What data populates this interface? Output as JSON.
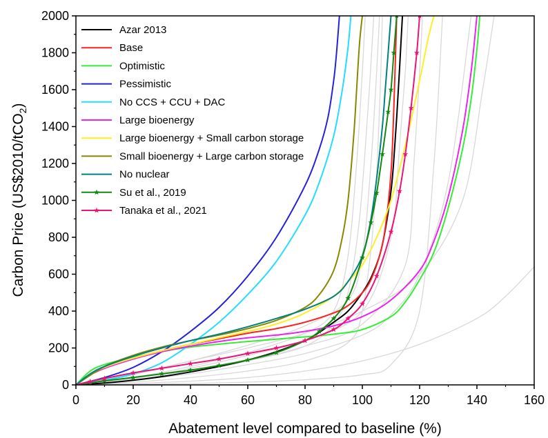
{
  "chart_data": {
    "type": "line",
    "title": "",
    "xlabel": "Abatement level compared to baseline (%)",
    "ylabel_main": "Carbon Price (US$2010/tCO",
    "ylabel_sub": "2",
    "ylabel_close": ")",
    "xlim": [
      0,
      160
    ],
    "ylim": [
      0,
      2000
    ],
    "xticks": [
      0,
      20,
      40,
      60,
      80,
      100,
      120,
      140,
      160
    ],
    "yticks": [
      0,
      200,
      400,
      600,
      800,
      1000,
      1200,
      1400,
      1600,
      1800,
      2000
    ],
    "grid": false,
    "legend_position": "top-left",
    "background_color": "#d8d8d8",
    "background_curves": [
      {
        "x": [
          0,
          20,
          40,
          60,
          80,
          100,
          120,
          140,
          150,
          160
        ],
        "y": [
          0,
          8,
          20,
          40,
          75,
          130,
          220,
          360,
          480,
          640
        ]
      },
      {
        "x": [
          0,
          20,
          40,
          60,
          80,
          100,
          110,
          120,
          125,
          128
        ],
        "y": [
          0,
          3,
          8,
          15,
          28,
          55,
          110,
          400,
          1200,
          2000
        ]
      },
      {
        "x": [
          0,
          20,
          40,
          60,
          80,
          95,
          100,
          104,
          106,
          107
        ],
        "y": [
          0,
          15,
          40,
          75,
          130,
          230,
          400,
          900,
          1500,
          2000
        ]
      },
      {
        "x": [
          0,
          20,
          40,
          60,
          80,
          90,
          95,
          99,
          102,
          104
        ],
        "y": [
          0,
          30,
          75,
          130,
          210,
          330,
          500,
          900,
          1500,
          2000
        ]
      },
      {
        "x": [
          0,
          20,
          40,
          60,
          80,
          90,
          95,
          98,
          100,
          101
        ],
        "y": [
          0,
          40,
          100,
          175,
          280,
          400,
          700,
          1200,
          1700,
          2000
        ]
      },
      {
        "x": [
          0,
          20,
          40,
          60,
          80,
          95,
          100,
          103,
          105,
          106
        ],
        "y": [
          0,
          55,
          130,
          215,
          320,
          460,
          700,
          1200,
          1700,
          2000
        ]
      },
      {
        "x": [
          0,
          20,
          40,
          60,
          80,
          100,
          110,
          113,
          115,
          116
        ],
        "y": [
          0,
          35,
          90,
          160,
          240,
          400,
          800,
          1300,
          1700,
          2000
        ]
      },
      {
        "x": [
          0,
          20,
          40,
          60,
          80,
          100,
          115,
          118,
          120,
          121
        ],
        "y": [
          0,
          25,
          70,
          130,
          210,
          330,
          650,
          1200,
          1700,
          2000
        ]
      },
      {
        "x": [
          0,
          20,
          40,
          60,
          80,
          100,
          120,
          135,
          142,
          146
        ],
        "y": [
          0,
          60,
          130,
          200,
          280,
          400,
          600,
          1000,
          1600,
          2000
        ]
      },
      {
        "x": [
          0,
          20,
          40,
          60,
          80,
          100,
          110,
          120,
          130,
          138
        ],
        "y": [
          0,
          25,
          60,
          110,
          170,
          270,
          380,
          600,
          1100,
          2000
        ]
      }
    ],
    "series": [
      {
        "name": "Azar 2013",
        "color": "#000000",
        "marker": "none",
        "x": [
          0,
          10,
          20,
          30,
          40,
          50,
          60,
          70,
          80,
          85,
          90,
          95,
          100,
          103,
          106,
          108,
          110,
          111,
          112,
          113,
          114
        ],
        "y": [
          0,
          10,
          25,
          45,
          70,
          100,
          135,
          180,
          240,
          285,
          340,
          400,
          500,
          580,
          700,
          840,
          1050,
          1220,
          1450,
          1720,
          2000
        ]
      },
      {
        "name": "Base",
        "color": "#ff2020",
        "marker": "none",
        "x": [
          0,
          5,
          10,
          15,
          20,
          30,
          40,
          50,
          60,
          70,
          80,
          90,
          95,
          100,
          103,
          106,
          108,
          110,
          111,
          112
        ],
        "y": [
          0,
          55,
          90,
          120,
          145,
          185,
          220,
          250,
          280,
          305,
          340,
          390,
          430,
          500,
          570,
          700,
          850,
          1150,
          1500,
          2000
        ]
      },
      {
        "name": "Optimistic",
        "color": "#33ee33",
        "marker": "none",
        "x": [
          0,
          5,
          10,
          20,
          30,
          40,
          60,
          80,
          90,
          100,
          110,
          115,
          120,
          125,
          130,
          135,
          138,
          140,
          141
        ],
        "y": [
          0,
          75,
          110,
          150,
          180,
          205,
          235,
          260,
          275,
          300,
          370,
          450,
          570,
          720,
          960,
          1280,
          1550,
          1820,
          2000
        ]
      },
      {
        "name": "Pessimistic",
        "color": "#2222dd",
        "marker": "none",
        "x": [
          0,
          10,
          20,
          30,
          40,
          50,
          60,
          70,
          80,
          85,
          88,
          90,
          91,
          92
        ],
        "y": [
          0,
          40,
          95,
          180,
          290,
          420,
          590,
          800,
          1080,
          1280,
          1450,
          1650,
          1800,
          2000
        ]
      },
      {
        "name": "No CCS + CCU + DAC",
        "color": "#22ddff",
        "marker": "none",
        "x": [
          0,
          10,
          20,
          30,
          40,
          50,
          60,
          70,
          80,
          85,
          90,
          93,
          95,
          96
        ],
        "y": [
          0,
          25,
          60,
          120,
          220,
          340,
          490,
          670,
          920,
          1100,
          1350,
          1600,
          1830,
          2000
        ]
      },
      {
        "name": "Large bioenergy",
        "color": "#ee22ee",
        "marker": "none",
        "x": [
          0,
          5,
          10,
          20,
          30,
          40,
          50,
          60,
          70,
          80,
          90,
          100,
          110,
          120,
          125,
          130,
          135,
          138,
          140
        ],
        "y": [
          0,
          55,
          90,
          140,
          180,
          210,
          235,
          255,
          270,
          290,
          320,
          370,
          460,
          620,
          780,
          1020,
          1380,
          1700,
          2000
        ]
      },
      {
        "name": "Large bioenergy + Small carbon storage",
        "color": "#ffee22",
        "marker": "none",
        "x": [
          0,
          5,
          10,
          20,
          30,
          40,
          50,
          60,
          70,
          80,
          90,
          95,
          100,
          105,
          110,
          115,
          120,
          123,
          125
        ],
        "y": [
          0,
          55,
          95,
          145,
          185,
          220,
          255,
          290,
          330,
          390,
          480,
          560,
          650,
          800,
          1000,
          1300,
          1650,
          1880,
          2000
        ]
      },
      {
        "name": "Small bioenergy + Large carbon storage",
        "color": "#888800",
        "marker": "none",
        "x": [
          0,
          10,
          20,
          30,
          40,
          50,
          60,
          70,
          80,
          85,
          90,
          93,
          95,
          97,
          98,
          99,
          100
        ],
        "y": [
          0,
          100,
          160,
          205,
          240,
          270,
          305,
          350,
          420,
          490,
          620,
          800,
          1000,
          1350,
          1600,
          1850,
          2000
        ]
      },
      {
        "name": "No nuclear",
        "color": "#008080",
        "marker": "none",
        "x": [
          0,
          5,
          10,
          20,
          30,
          40,
          50,
          60,
          70,
          80,
          90,
          95,
          100,
          103,
          105,
          107,
          108,
          109,
          110
        ],
        "y": [
          0,
          60,
          100,
          155,
          200,
          240,
          275,
          315,
          360,
          410,
          480,
          560,
          700,
          900,
          1120,
          1400,
          1600,
          1800,
          2000
        ]
      },
      {
        "name": "Su et al., 2019",
        "color": "#118811",
        "marker": "star",
        "x": [
          0,
          5,
          10,
          20,
          30,
          40,
          50,
          60,
          70,
          80,
          85,
          90,
          95,
          100,
          103,
          105,
          107,
          109,
          110,
          111,
          112
        ],
        "y": [
          0,
          10,
          22,
          40,
          60,
          80,
          105,
          135,
          175,
          240,
          290,
          360,
          470,
          690,
          880,
          1040,
          1250,
          1480,
          1600,
          1800,
          2000
        ]
      },
      {
        "name": "Tanaka et al., 2021",
        "color": "#ee1177",
        "marker": "star",
        "x": [
          0,
          5,
          10,
          20,
          30,
          40,
          50,
          60,
          70,
          80,
          90,
          95,
          100,
          105,
          110,
          113,
          115,
          117,
          119,
          120
        ],
        "y": [
          0,
          18,
          35,
          65,
          90,
          115,
          140,
          170,
          200,
          240,
          300,
          360,
          440,
          590,
          830,
          1050,
          1250,
          1500,
          1800,
          2000
        ]
      }
    ]
  }
}
